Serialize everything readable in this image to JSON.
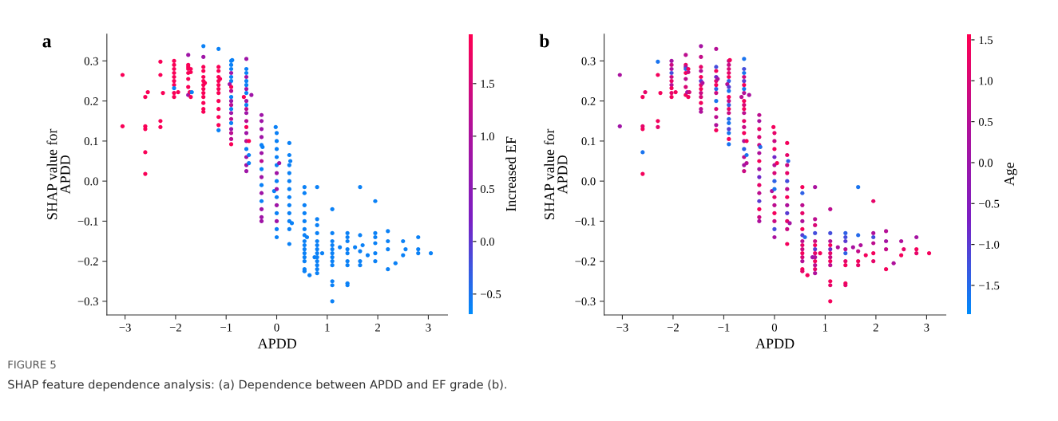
{
  "chart_data": [
    {
      "type": "scatter",
      "title": "a",
      "xlabel": "APDD",
      "ylabel": "SHAP value for\nAPDD",
      "clabel": "Increased EF",
      "marker": "circle",
      "grid": false,
      "xlim": [
        -3.36,
        3.38
      ],
      "ylim": [
        -0.334,
        0.367
      ],
      "xticks": [
        {
          "value": -3,
          "label": "−3"
        },
        {
          "value": -2,
          "label": "−2"
        },
        {
          "value": -1,
          "label": "−1"
        },
        {
          "value": 0,
          "label": "0"
        },
        {
          "value": 1,
          "label": "1"
        },
        {
          "value": 2,
          "label": "2"
        },
        {
          "value": 3,
          "label": "3"
        }
      ],
      "yticks": [
        {
          "value": -0.3,
          "label": "−0.3"
        },
        {
          "value": -0.2,
          "label": "−0.2"
        },
        {
          "value": -0.1,
          "label": "−0.1"
        },
        {
          "value": 0,
          "label": "0.0"
        },
        {
          "value": 0.1,
          "label": "0.1"
        },
        {
          "value": 0.2,
          "label": "0.2"
        },
        {
          "value": 0.3,
          "label": "0.3"
        }
      ],
      "clim": [
        -0.69,
        1.97
      ],
      "cticks": [
        {
          "value": -0.5,
          "label": "−0.5"
        },
        {
          "value": 0,
          "label": "0.0"
        },
        {
          "value": 0.5,
          "label": "0.5"
        },
        {
          "value": 1,
          "label": "1.0"
        },
        {
          "value": 1.5,
          "label": "1.5"
        }
      ],
      "annotations": [
        "FIGURE 5",
        "SHAP feature dependence analysis: (a) Dependence between APDD and EF grade (b)."
      ],
      "series": [
        {
          "x": [
            -3.05,
            -3.05,
            -2.6,
            -2.55,
            -2.6,
            -2.6,
            -2.6,
            -2.6,
            -2.3,
            -2.3,
            -2.3,
            -2.3,
            -2.25,
            -2.03,
            -2.03,
            -2.03,
            -2.03,
            -2.03,
            -2.03,
            -2.03,
            -2.03,
            -2.03,
            -2.03,
            -1.95,
            -1.75,
            -1.75,
            -1.75,
            -1.75,
            -1.75,
            -1.75,
            -1.75,
            -1.75,
            -1.72,
            -1.7,
            -1.7,
            -1.7,
            -1.68,
            -1.45,
            -1.45,
            -1.45,
            -1.45,
            -1.45,
            -1.45,
            -1.45,
            -1.42,
            -1.45,
            -1.45,
            -1.45,
            -1.45,
            -1.45,
            -1.45,
            -1.15,
            -1.15,
            -1.15,
            -1.15,
            -1.15,
            -1.12,
            -1.15,
            -1.15,
            -1.15,
            -1.15,
            -1.15,
            -1.15,
            -1.15,
            -1.15,
            -0.9,
            -0.88,
            -0.9,
            -0.9,
            -0.9,
            -0.9,
            -0.9,
            -0.93,
            -0.9,
            -0.9,
            -0.9,
            -0.9,
            -0.9,
            -0.9,
            -0.9,
            -0.9,
            -0.9,
            -0.9,
            -0.9,
            -0.9,
            -0.9,
            -0.6,
            -0.6,
            -0.6,
            -0.6,
            -0.6,
            -0.6,
            -0.6,
            -0.6,
            -0.65,
            -0.6,
            -0.6,
            -0.6,
            -0.6,
            -0.6,
            -0.6,
            -0.6,
            -0.6,
            -0.6,
            -0.6,
            -0.6,
            -0.6,
            -0.55,
            -0.55,
            -0.5,
            -0.55,
            -0.3,
            -0.3,
            -0.3,
            -0.3,
            -0.3,
            -0.28,
            -0.3,
            -0.3,
            -0.3,
            -0.3,
            -0.3,
            -0.3,
            -0.3,
            -0.3,
            -0.3,
            -0.3,
            -0.02,
            0,
            0,
            0,
            0,
            0,
            0.05,
            0,
            0,
            -0.05,
            0,
            0,
            0,
            0,
            0,
            0,
            0,
            0.25,
            0.25,
            0.27,
            0.25,
            0.25,
            0.25,
            0.25,
            0.25,
            0.25,
            0.25,
            0.25,
            0.25,
            0.25,
            0.3,
            0.55,
            0.55,
            0.55,
            0.55,
            0.55,
            0.55,
            0.55,
            0.6,
            0.55,
            0.55,
            0.55,
            0.55,
            0.55,
            0.55,
            0.55,
            0.55,
            0.65,
            0.8,
            0.8,
            0.8,
            0.8,
            0.8,
            0.8,
            0.8,
            0.75,
            0.8,
            0.8,
            0.8,
            0.8,
            0.8,
            0.8,
            0.9,
            1.1,
            1.1,
            1.1,
            1.1,
            1.1,
            1.1,
            1.1,
            1.1,
            1.1,
            1.1,
            1.1,
            1.1,
            1.25,
            1.4,
            1.4,
            1.4,
            1.4,
            1.4,
            1.4,
            1.4,
            1.4,
            1.4,
            1.55,
            1.65,
            1.65,
            1.7,
            1.65,
            1.65,
            1.65,
            1.8,
            1.95,
            1.95,
            1.95,
            1.95,
            1.95,
            1.95,
            2.2,
            2.2,
            2.2,
            2.2,
            2.35,
            2.5,
            2.55,
            2.5,
            2.8,
            2.8,
            2.8,
            3.05
          ],
          "values": [
            0.265,
            0.137,
            0.21,
            0.222,
            0.13,
            0.137,
            0.072,
            0.018,
            0.298,
            0.265,
            0.15,
            0.135,
            0.22,
            0.3,
            0.29,
            0.28,
            0.27,
            0.26,
            0.25,
            0.24,
            0.232,
            0.22,
            0.21,
            0.222,
            0.315,
            0.29,
            0.285,
            0.28,
            0.27,
            0.255,
            0.235,
            0.215,
            0.222,
            0.28,
            0.272,
            0.21,
            0.222,
            0.337,
            0.31,
            0.285,
            0.275,
            0.26,
            0.25,
            0.24,
            0.245,
            0.23,
            0.22,
            0.21,
            0.195,
            0.18,
            0.173,
            0.33,
            0.285,
            0.275,
            0.26,
            0.25,
            0.255,
            0.24,
            0.23,
            0.22,
            0.2,
            0.18,
            0.16,
            0.14,
            0.127,
            0.3,
            0.302,
            0.29,
            0.28,
            0.27,
            0.26,
            0.25,
            0.242,
            0.235,
            0.225,
            0.21,
            0.2,
            0.19,
            0.18,
            0.17,
            0.155,
            0.145,
            0.13,
            0.12,
            0.105,
            0.092,
            0.305,
            0.28,
            0.27,
            0.26,
            0.25,
            0.24,
            0.23,
            0.22,
            0.21,
            0.2,
            0.19,
            0.18,
            0.17,
            0.15,
            0.135,
            0.12,
            0.1,
            0.08,
            0.06,
            0.04,
            0.025,
            0.1,
            0.065,
            0.215,
            0.045,
            0.165,
            0.15,
            0.13,
            0.11,
            0.09,
            0.085,
            0.07,
            0.05,
            0.03,
            0.01,
            -0.01,
            -0.03,
            -0.05,
            -0.07,
            -0.09,
            -0.1,
            0.135,
            0.12,
            0.1,
            0.08,
            0.06,
            0.04,
            0.045,
            0.02,
            0,
            -0.025,
            -0.02,
            -0.04,
            -0.06,
            -0.08,
            -0.1,
            -0.12,
            -0.14,
            0.095,
            0.065,
            0.05,
            0.04,
            0.02,
            0,
            -0.02,
            -0.04,
            -0.06,
            -0.08,
            -0.1,
            -0.12,
            -0.157,
            -0.105,
            -0.015,
            -0.03,
            -0.06,
            -0.08,
            -0.1,
            -0.12,
            -0.135,
            -0.14,
            -0.15,
            -0.16,
            -0.17,
            -0.18,
            -0.19,
            -0.2,
            -0.22,
            -0.225,
            -0.235,
            -0.015,
            -0.095,
            -0.11,
            -0.13,
            -0.15,
            -0.16,
            -0.17,
            -0.19,
            -0.18,
            -0.19,
            -0.2,
            -0.21,
            -0.22,
            -0.23,
            -0.18,
            -0.07,
            -0.13,
            -0.15,
            -0.16,
            -0.17,
            -0.18,
            -0.19,
            -0.2,
            -0.21,
            -0.25,
            -0.26,
            -0.3,
            -0.165,
            -0.13,
            -0.14,
            -0.15,
            -0.17,
            -0.18,
            -0.2,
            -0.21,
            -0.255,
            -0.26,
            -0.165,
            -0.015,
            -0.135,
            -0.16,
            -0.175,
            -0.2,
            -0.21,
            -0.185,
            -0.05,
            -0.13,
            -0.14,
            -0.155,
            -0.18,
            -0.2,
            -0.125,
            -0.15,
            -0.17,
            -0.22,
            -0.205,
            -0.15,
            -0.17,
            -0.185,
            -0.14,
            -0.17,
            -0.18,
            -0.18
          ],
          "cvalues": [
            1.9,
            1.9,
            1.9,
            1.9,
            1.9,
            1.9,
            1.9,
            1.9,
            1.9,
            1.9,
            1.9,
            1.9,
            1.9,
            1.9,
            1.9,
            1.9,
            1.9,
            1.9,
            1.9,
            1.9,
            -0.6,
            1.9,
            1.9,
            1.9,
            0.8,
            1.9,
            1.9,
            1.9,
            1.9,
            1.9,
            1.9,
            0.8,
            1.9,
            1.9,
            1.9,
            1.9,
            -0.6,
            -0.6,
            0.8,
            1.9,
            1.9,
            1.9,
            1.9,
            1.9,
            1.9,
            1.9,
            1.9,
            1.9,
            1.9,
            1.9,
            1.9,
            -0.6,
            1.9,
            1.9,
            1.9,
            1.9,
            1.9,
            1.9,
            1.9,
            1.9,
            1.9,
            1.9,
            1.9,
            1.9,
            -0.6,
            -0.6,
            -0.6,
            -0.6,
            -0.6,
            0.8,
            -0.6,
            -0.6,
            0.8,
            1.9,
            1.2,
            -0.6,
            0.8,
            1.2,
            -0.6,
            0.8,
            1.2,
            -0.6,
            0.8,
            1.2,
            1.2,
            1.9,
            0.8,
            -0.6,
            -0.6,
            0.8,
            -0.6,
            -0.6,
            0.8,
            -0.6,
            1.9,
            0.8,
            -0.6,
            1.2,
            0.8,
            1.2,
            1.9,
            0.8,
            1.2,
            -0.6,
            0.8,
            0.8,
            0.8,
            1.9,
            -0.6,
            0.8,
            -0.6,
            0.8,
            0.8,
            0.8,
            0.8,
            -0.6,
            -0.6,
            0.8,
            1.2,
            -0.6,
            0.8,
            -0.6,
            0.8,
            -0.6,
            0.8,
            0.8,
            0.8,
            -0.6,
            -0.6,
            -0.6,
            -0.6,
            -0.6,
            -0.6,
            0.8,
            0.8,
            -0.6,
            -0.6,
            0.8,
            -0.6,
            0.8,
            -0.6,
            0.8,
            -0.6,
            -0.6,
            -0.6,
            -0.6,
            -0.6,
            -0.6,
            -0.6,
            -0.6,
            -0.6,
            -0.6,
            -0.6,
            -0.6,
            -0.6,
            -0.6,
            -0.6,
            -0.6,
            -0.6,
            -0.6,
            -0.6,
            -0.6,
            -0.6,
            -0.6,
            -0.6,
            -0.6,
            -0.6,
            -0.6,
            -0.6,
            -0.6,
            -0.6,
            -0.6,
            -0.6,
            -0.6,
            -0.6,
            -0.6,
            -0.6,
            -0.6,
            -0.6,
            -0.6,
            -0.6,
            -0.6,
            -0.6,
            -0.6,
            -0.6,
            -0.6,
            -0.6,
            -0.6,
            -0.6,
            -0.6,
            -0.6,
            -0.6,
            -0.6,
            -0.6,
            -0.6,
            -0.6,
            -0.6,
            -0.6,
            -0.6,
            -0.6,
            -0.6,
            -0.6,
            -0.6,
            -0.6,
            -0.6,
            -0.6,
            -0.6,
            -0.6,
            -0.6,
            -0.6,
            -0.6,
            -0.6,
            -0.6,
            -0.6,
            -0.6,
            -0.6,
            -0.6,
            -0.6,
            -0.6,
            -0.6,
            -0.6,
            -0.6,
            -0.6,
            -0.6,
            -0.6,
            -0.6,
            -0.6,
            -0.6,
            -0.6,
            -0.6,
            -0.6,
            -0.6,
            -0.6,
            -0.6,
            -0.6,
            -0.6,
            -0.6,
            -0.6
          ]
        }
      ]
    },
    {
      "type": "scatter",
      "title": "b",
      "xlabel": "APDD",
      "ylabel": "SHAP value for\nAPDD",
      "clabel": "Age",
      "marker": "circle",
      "grid": false,
      "xlim": [
        -3.36,
        3.38
      ],
      "ylim": [
        -0.334,
        0.367
      ],
      "xticks": [
        {
          "value": -3,
          "label": "−3"
        },
        {
          "value": -2,
          "label": "−2"
        },
        {
          "value": -1,
          "label": "−1"
        },
        {
          "value": 0,
          "label": "0"
        },
        {
          "value": 1,
          "label": "1"
        },
        {
          "value": 2,
          "label": "2"
        },
        {
          "value": 3,
          "label": "3"
        }
      ],
      "yticks": [
        {
          "value": -0.3,
          "label": "−0.3"
        },
        {
          "value": -0.2,
          "label": "−0.2"
        },
        {
          "value": -0.1,
          "label": "−0.1"
        },
        {
          "value": 0,
          "label": "0.0"
        },
        {
          "value": 0.1,
          "label": "0.1"
        },
        {
          "value": 0.2,
          "label": "0.2"
        },
        {
          "value": 0.3,
          "label": "0.3"
        }
      ],
      "clim": [
        -1.85,
        1.57
      ],
      "cticks": [
        {
          "value": -1.5,
          "label": "−1.5"
        },
        {
          "value": -1,
          "label": "−1.0"
        },
        {
          "value": -0.5,
          "label": "−0.5"
        },
        {
          "value": 0,
          "label": "0.0"
        },
        {
          "value": 0.5,
          "label": "0.5"
        },
        {
          "value": 1,
          "label": "1.0"
        },
        {
          "value": 1.5,
          "label": "1.5"
        }
      ],
      "series": [
        {
          "x": [
            -3.05,
            -3.05,
            -2.6,
            -2.55,
            -2.6,
            -2.6,
            -2.6,
            -2.6,
            -2.3,
            -2.3,
            -2.3,
            -2.3,
            -2.25,
            -2.03,
            -2.03,
            -2.03,
            -2.03,
            -2.03,
            -2.03,
            -2.03,
            -2.03,
            -2.03,
            -2.03,
            -1.95,
            -1.75,
            -1.75,
            -1.75,
            -1.75,
            -1.75,
            -1.75,
            -1.75,
            -1.75,
            -1.72,
            -1.7,
            -1.7,
            -1.7,
            -1.68,
            -1.45,
            -1.45,
            -1.45,
            -1.45,
            -1.45,
            -1.45,
            -1.45,
            -1.42,
            -1.45,
            -1.45,
            -1.45,
            -1.45,
            -1.45,
            -1.45,
            -1.15,
            -1.15,
            -1.15,
            -1.15,
            -1.15,
            -1.12,
            -1.15,
            -1.15,
            -1.15,
            -1.15,
            -1.15,
            -1.15,
            -1.15,
            -1.15,
            -0.9,
            -0.88,
            -0.9,
            -0.9,
            -0.9,
            -0.9,
            -0.9,
            -0.93,
            -0.9,
            -0.9,
            -0.9,
            -0.9,
            -0.9,
            -0.9,
            -0.9,
            -0.9,
            -0.9,
            -0.9,
            -0.9,
            -0.9,
            -0.9,
            -0.6,
            -0.6,
            -0.6,
            -0.6,
            -0.6,
            -0.6,
            -0.6,
            -0.6,
            -0.65,
            -0.6,
            -0.6,
            -0.6,
            -0.6,
            -0.6,
            -0.6,
            -0.6,
            -0.6,
            -0.6,
            -0.6,
            -0.6,
            -0.6,
            -0.55,
            -0.55,
            -0.5,
            -0.55,
            -0.3,
            -0.3,
            -0.3,
            -0.3,
            -0.3,
            -0.28,
            -0.3,
            -0.3,
            -0.3,
            -0.3,
            -0.3,
            -0.3,
            -0.3,
            -0.3,
            -0.3,
            -0.3,
            -0.02,
            0,
            0,
            0,
            0,
            0,
            0.05,
            0,
            0,
            -0.05,
            0,
            0,
            0,
            0,
            0,
            0,
            0,
            0.25,
            0.25,
            0.27,
            0.25,
            0.25,
            0.25,
            0.25,
            0.25,
            0.25,
            0.25,
            0.25,
            0.25,
            0.25,
            0.3,
            0.55,
            0.55,
            0.55,
            0.55,
            0.55,
            0.55,
            0.55,
            0.6,
            0.55,
            0.55,
            0.55,
            0.55,
            0.55,
            0.55,
            0.55,
            0.55,
            0.65,
            0.8,
            0.8,
            0.8,
            0.8,
            0.8,
            0.8,
            0.8,
            0.75,
            0.8,
            0.8,
            0.8,
            0.8,
            0.8,
            0.8,
            0.9,
            1.1,
            1.1,
            1.1,
            1.1,
            1.1,
            1.1,
            1.1,
            1.1,
            1.1,
            1.1,
            1.1,
            1.1,
            1.25,
            1.4,
            1.4,
            1.4,
            1.4,
            1.4,
            1.4,
            1.4,
            1.4,
            1.4,
            1.55,
            1.65,
            1.65,
            1.7,
            1.65,
            1.65,
            1.65,
            1.8,
            1.95,
            1.95,
            1.95,
            1.95,
            1.95,
            1.95,
            2.2,
            2.2,
            2.2,
            2.2,
            2.35,
            2.5,
            2.55,
            2.5,
            2.8,
            2.8,
            2.8,
            3.05
          ],
          "values": [
            0.265,
            0.137,
            0.21,
            0.222,
            0.13,
            0.137,
            0.072,
            0.018,
            0.298,
            0.265,
            0.15,
            0.135,
            0.22,
            0.3,
            0.29,
            0.28,
            0.27,
            0.26,
            0.25,
            0.24,
            0.232,
            0.22,
            0.21,
            0.222,
            0.315,
            0.29,
            0.285,
            0.28,
            0.27,
            0.255,
            0.235,
            0.215,
            0.222,
            0.28,
            0.272,
            0.21,
            0.222,
            0.337,
            0.31,
            0.285,
            0.275,
            0.26,
            0.25,
            0.24,
            0.245,
            0.23,
            0.22,
            0.21,
            0.195,
            0.18,
            0.173,
            0.33,
            0.285,
            0.275,
            0.26,
            0.25,
            0.255,
            0.24,
            0.23,
            0.22,
            0.2,
            0.18,
            0.16,
            0.14,
            0.127,
            0.3,
            0.302,
            0.29,
            0.28,
            0.27,
            0.26,
            0.25,
            0.242,
            0.235,
            0.225,
            0.21,
            0.2,
            0.19,
            0.18,
            0.17,
            0.155,
            0.145,
            0.13,
            0.12,
            0.105,
            0.092,
            0.305,
            0.28,
            0.27,
            0.26,
            0.25,
            0.24,
            0.23,
            0.22,
            0.21,
            0.2,
            0.19,
            0.18,
            0.17,
            0.15,
            0.135,
            0.12,
            0.1,
            0.08,
            0.06,
            0.04,
            0.025,
            0.1,
            0.065,
            0.215,
            0.045,
            0.165,
            0.15,
            0.13,
            0.11,
            0.09,
            0.085,
            0.07,
            0.05,
            0.03,
            0.01,
            -0.01,
            -0.03,
            -0.05,
            -0.07,
            -0.09,
            -0.1,
            0.135,
            0.12,
            0.1,
            0.08,
            0.06,
            0.04,
            0.045,
            0.02,
            0,
            -0.025,
            -0.02,
            -0.04,
            -0.06,
            -0.08,
            -0.1,
            -0.12,
            -0.14,
            0.095,
            0.065,
            0.05,
            0.04,
            0.02,
            0,
            -0.02,
            -0.04,
            -0.06,
            -0.08,
            -0.1,
            -0.12,
            -0.157,
            -0.105,
            -0.015,
            -0.03,
            -0.06,
            -0.08,
            -0.1,
            -0.12,
            -0.135,
            -0.14,
            -0.15,
            -0.16,
            -0.17,
            -0.18,
            -0.19,
            -0.2,
            -0.22,
            -0.225,
            -0.235,
            -0.015,
            -0.095,
            -0.11,
            -0.13,
            -0.15,
            -0.16,
            -0.17,
            -0.19,
            -0.18,
            -0.19,
            -0.2,
            -0.21,
            -0.22,
            -0.23,
            -0.18,
            -0.07,
            -0.13,
            -0.15,
            -0.16,
            -0.17,
            -0.18,
            -0.19,
            -0.2,
            -0.21,
            -0.25,
            -0.26,
            -0.3,
            -0.165,
            -0.13,
            -0.14,
            -0.15,
            -0.17,
            -0.18,
            -0.2,
            -0.21,
            -0.255,
            -0.26,
            -0.165,
            -0.015,
            -0.135,
            -0.16,
            -0.175,
            -0.2,
            -0.21,
            -0.185,
            -0.05,
            -0.13,
            -0.14,
            -0.155,
            -0.18,
            -0.2,
            -0.125,
            -0.15,
            -0.17,
            -0.22,
            -0.205,
            -0.15,
            -0.17,
            -0.185,
            -0.14,
            -0.17,
            -0.18,
            -0.18
          ],
          "cvalues": [
            0.3,
            0.1,
            1.4,
            1.2,
            1.4,
            1.2,
            -1.6,
            1.4,
            -1.6,
            1.4,
            1.4,
            1.2,
            1.4,
            0.2,
            0.8,
            0.3,
            -1.2,
            0.8,
            1.2,
            0.5,
            1.4,
            1.2,
            1.4,
            1.4,
            0.6,
            1.3,
            0.2,
            -1.4,
            1.4,
            0.6,
            1.0,
            1.4,
            0.3,
            1.4,
            0.8,
            1.4,
            1.0,
            0.2,
            0.7,
            1.2,
            0.5,
            1.4,
            -1.0,
            1.2,
            0.4,
            1.4,
            0.8,
            1.0,
            1.4,
            0.6,
            0.4,
            0.5,
            -1.2,
            1.4,
            -0.8,
            1.2,
            0.3,
            1.4,
            -1.4,
            0.8,
            -1.6,
            1.0,
            0.6,
            0.4,
            1.4,
            0.6,
            1.4,
            0.8,
            1.0,
            1.2,
            1.4,
            -1.4,
            0.5,
            -1.0,
            -1.6,
            1.4,
            0.7,
            -1.3,
            1.2,
            0.8,
            -1.5,
            -1.6,
            -1.0,
            -1.6,
            1.4,
            -1.6,
            -1.6,
            -1.2,
            -1.6,
            0.8,
            -1.0,
            1.4,
            -1.6,
            0.5,
            0.6,
            1.4,
            1.0,
            1.4,
            0.6,
            1.2,
            0.8,
            1.4,
            0.4,
            -1.4,
            0.6,
            0.2,
            0.8,
            1.4,
            -1.6,
            0.3,
            0.5,
            0.6,
            0.3,
            1.2,
            1.0,
            0.8,
            -1.5,
            0.4,
            1.4,
            0.2,
            -0.8,
            1.2,
            0.6,
            -1.0,
            1.4,
            0.8,
            0.4,
            1.4,
            1.2,
            0.8,
            1.4,
            -0.8,
            0.5,
            1.4,
            1.0,
            -1.4,
            0.4,
            -1.6,
            1.2,
            0.6,
            1.4,
            0.8,
            -1.2,
            0.3,
            1.4,
            1.2,
            -1.4,
            0.8,
            1.2,
            -1.2,
            0.6,
            1.4,
            0.4,
            -1.0,
            1.2,
            0.8,
            1.4,
            0.2,
            1.4,
            -1.4,
            0.6,
            1.2,
            0.4,
            1.4,
            -1.0,
            -1.5,
            0.6,
            1.2,
            0.8,
            1.4,
            1.0,
            0.5,
            1.4,
            1.2,
            1.4,
            0.3,
            0.6,
            1.0,
            -1.2,
            0.8,
            1.4,
            -1.0,
            0.0,
            1.2,
            0.4,
            1.4,
            0.6,
            1.2,
            0.4,
            1.4,
            0.6,
            -1.2,
            0.5,
            1.4,
            -0.8,
            1.2,
            0.8,
            1.4,
            0.6,
            1.4,
            1.2,
            1.4,
            0.4,
            -1.4,
            -1.2,
            -1.0,
            0.6,
            -1.4,
            1.2,
            1.4,
            1.4,
            1.2,
            0.3,
            -1.6,
            -1.5,
            0.4,
            0.7,
            1.4,
            1.2,
            1.4,
            1.2,
            0.4,
            -1.2,
            0.6,
            1.4,
            1.2,
            0.5,
            0.2,
            0.7,
            1.4,
            0.4,
            0.4,
            1.2,
            1.4,
            0.2,
            1.4,
            1.2,
            1.4
          ]
        }
      ]
    }
  ]
}
